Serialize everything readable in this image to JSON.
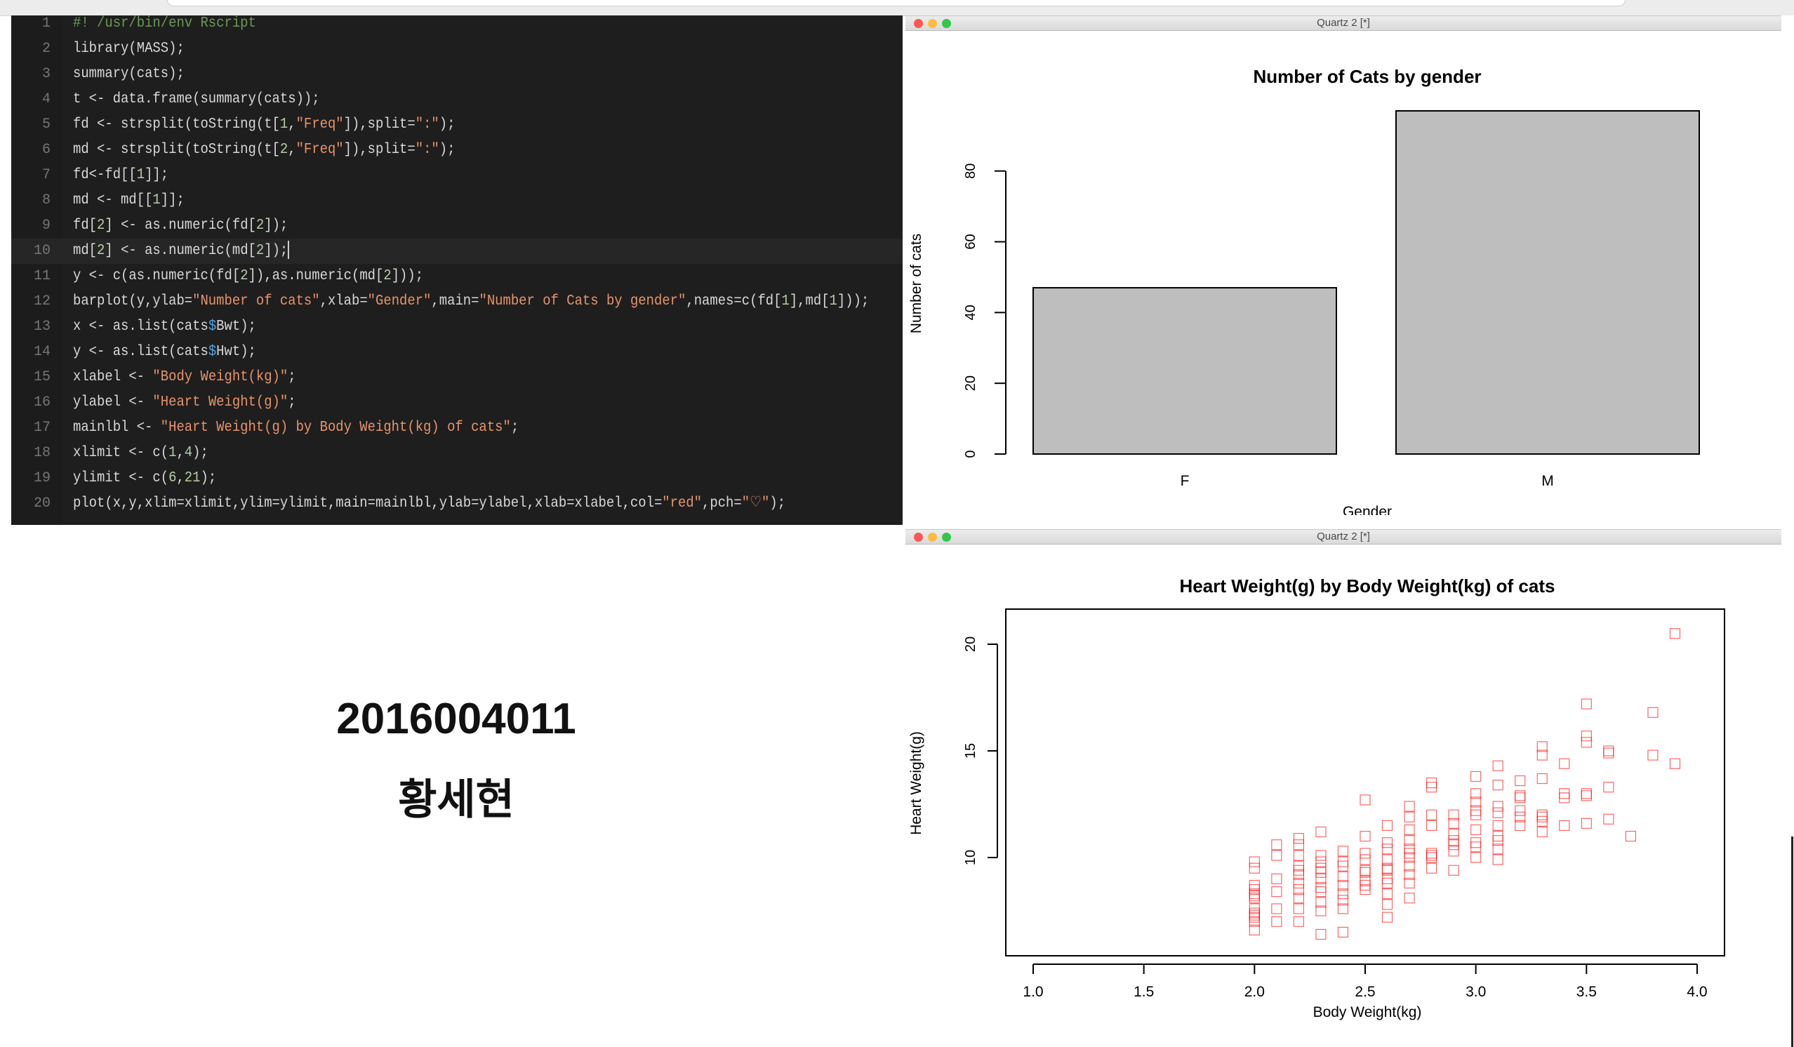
{
  "editor": {
    "lines": [
      {
        "n": "1",
        "tokens": [
          {
            "t": "#! /usr/bin/env Rscript",
            "c": "cm"
          }
        ]
      },
      {
        "n": "2",
        "tokens": [
          {
            "t": "library(MASS);"
          }
        ]
      },
      {
        "n": "3",
        "tokens": [
          {
            "t": "summary(cats);"
          }
        ]
      },
      {
        "n": "4",
        "tokens": [
          {
            "t": "t <- data.frame(summary(cats));"
          }
        ]
      },
      {
        "n": "5",
        "tokens": [
          {
            "t": "fd <- strsplit(toString(t["
          },
          {
            "t": "1",
            "c": "num"
          },
          {
            "t": ","
          },
          {
            "t": "\"Freq\"",
            "c": "str"
          },
          {
            "t": "]),split="
          },
          {
            "t": "\":\"",
            "c": "str"
          },
          {
            "t": ");"
          }
        ]
      },
      {
        "n": "6",
        "tokens": [
          {
            "t": "md <- strsplit(toString(t["
          },
          {
            "t": "2",
            "c": "num"
          },
          {
            "t": ","
          },
          {
            "t": "\"Freq\"",
            "c": "str"
          },
          {
            "t": "]),split="
          },
          {
            "t": "\":\"",
            "c": "str"
          },
          {
            "t": ");"
          }
        ]
      },
      {
        "n": "7",
        "tokens": [
          {
            "t": "fd<-fd[["
          },
          {
            "t": "1",
            "c": "num"
          },
          {
            "t": "]];"
          }
        ]
      },
      {
        "n": "8",
        "tokens": [
          {
            "t": "md <- md[["
          },
          {
            "t": "1",
            "c": "num"
          },
          {
            "t": "]];"
          }
        ]
      },
      {
        "n": "9",
        "tokens": [
          {
            "t": "fd["
          },
          {
            "t": "2",
            "c": "num"
          },
          {
            "t": "] <- as.numeric(fd["
          },
          {
            "t": "2",
            "c": "num"
          },
          {
            "t": "]);"
          }
        ]
      },
      {
        "n": "10",
        "tokens": [
          {
            "t": "md["
          },
          {
            "t": "2",
            "c": "num"
          },
          {
            "t": "] <- as.numeric(md["
          },
          {
            "t": "2",
            "c": "num"
          },
          {
            "t": "]);"
          }
        ],
        "current": true
      },
      {
        "n": "11",
        "tokens": [
          {
            "t": "y <- c(as.numeric(fd["
          },
          {
            "t": "2",
            "c": "num"
          },
          {
            "t": "]),as.numeric(md["
          },
          {
            "t": "2",
            "c": "num"
          },
          {
            "t": "]));"
          }
        ]
      },
      {
        "n": "12",
        "tokens": [
          {
            "t": "barplot(y,ylab="
          },
          {
            "t": "\"Number of cats\"",
            "c": "str"
          },
          {
            "t": ",xlab="
          },
          {
            "t": "\"Gender\"",
            "c": "str"
          },
          {
            "t": ",main="
          },
          {
            "t": "\"Number of Cats by gender\"",
            "c": "str"
          },
          {
            "t": ",names=c(fd["
          },
          {
            "t": "1",
            "c": "num"
          },
          {
            "t": "],md["
          },
          {
            "t": "1",
            "c": "num"
          },
          {
            "t": "]));"
          }
        ]
      },
      {
        "n": "13",
        "tokens": [
          {
            "t": "x <- as.list(cats"
          },
          {
            "t": "$",
            "c": "var"
          },
          {
            "t": "Bwt);"
          }
        ]
      },
      {
        "n": "14",
        "tokens": [
          {
            "t": "y <- as.list(cats"
          },
          {
            "t": "$",
            "c": "var"
          },
          {
            "t": "Hwt);"
          }
        ]
      },
      {
        "n": "15",
        "tokens": [
          {
            "t": "xlabel <- "
          },
          {
            "t": "\"Body Weight(kg)\"",
            "c": "str"
          },
          {
            "t": ";"
          }
        ]
      },
      {
        "n": "16",
        "tokens": [
          {
            "t": "ylabel <- "
          },
          {
            "t": "\"Heart Weight(g)\"",
            "c": "str"
          },
          {
            "t": ";"
          }
        ]
      },
      {
        "n": "17",
        "tokens": [
          {
            "t": "mainlbl <- "
          },
          {
            "t": "\"Heart Weight(g) by Body Weight(kg) of cats\"",
            "c": "str"
          },
          {
            "t": ";"
          }
        ]
      },
      {
        "n": "18",
        "tokens": [
          {
            "t": "xlimit <- c("
          },
          {
            "t": "1",
            "c": "num"
          },
          {
            "t": ","
          },
          {
            "t": "4",
            "c": "num"
          },
          {
            "t": ");"
          }
        ]
      },
      {
        "n": "19",
        "tokens": [
          {
            "t": "ylimit <- c("
          },
          {
            "t": "6",
            "c": "num"
          },
          {
            "t": ","
          },
          {
            "t": "21",
            "c": "num"
          },
          {
            "t": ");"
          }
        ]
      },
      {
        "n": "20",
        "tokens": [
          {
            "t": "plot(x,y,xlim=xlimit,ylim=ylimit,main=mainlbl,ylab=ylabel,xlab=xlabel,col="
          },
          {
            "t": "\"red\"",
            "c": "str"
          },
          {
            "t": ",pch="
          },
          {
            "t": "\"♡\"",
            "c": "str"
          },
          {
            "t": ");"
          }
        ]
      }
    ]
  },
  "student": {
    "id": "2016004011",
    "name": "황세현"
  },
  "windows": {
    "top_title": "Quartz 2 [*]",
    "bottom_title": "Quartz 2 [*]"
  },
  "chart_data": [
    {
      "type": "bar",
      "title": "Number of Cats by gender",
      "xlabel": "Gender",
      "ylabel": "Number of cats",
      "categories": [
        "F",
        "M"
      ],
      "values": [
        47,
        97
      ],
      "ylim": [
        0,
        97
      ],
      "yticks": [
        "0",
        "20",
        "40",
        "60",
        "80"
      ],
      "bar_color": "#bebebe",
      "grid": false
    },
    {
      "type": "scatter",
      "title": "Heart Weight(g) by Body Weight(kg) of cats",
      "xlabel": "Body Weight(kg)",
      "ylabel": "Heart Weight(g)",
      "xlim": [
        1,
        4
      ],
      "ylim": [
        6,
        21
      ],
      "xticks": [
        "1.0",
        "1.5",
        "2.0",
        "2.5",
        "3.0",
        "3.5",
        "4.0"
      ],
      "yticks": [
        "10",
        "15",
        "20"
      ],
      "marker": "square",
      "color": "#ff0000",
      "grid": false,
      "points": [
        [
          2.0,
          7.0
        ],
        [
          2.0,
          7.4
        ],
        [
          2.0,
          9.5
        ],
        [
          2.0,
          7.2
        ],
        [
          2.0,
          7.3
        ],
        [
          2.0,
          7.6
        ],
        [
          2.0,
          8.1
        ],
        [
          2.0,
          8.2
        ],
        [
          2.0,
          8.3
        ],
        [
          2.0,
          8.5
        ],
        [
          2.0,
          8.7
        ],
        [
          2.0,
          9.8
        ],
        [
          2.1,
          7.0
        ],
        [
          2.1,
          10.1
        ],
        [
          2.1,
          10.6
        ],
        [
          2.2,
          7.0
        ],
        [
          2.2,
          8.1
        ],
        [
          2.2,
          8.5
        ],
        [
          2.2,
          8.8
        ],
        [
          2.2,
          9.2
        ],
        [
          2.2,
          9.6
        ],
        [
          2.2,
          10.1
        ],
        [
          2.3,
          6.4
        ],
        [
          2.3,
          8.6
        ],
        [
          2.3,
          9.3
        ],
        [
          2.3,
          9.5
        ],
        [
          2.3,
          9.8
        ],
        [
          2.4,
          9.6
        ],
        [
          2.4,
          10.3
        ],
        [
          2.5,
          8.5
        ],
        [
          2.5,
          9.4
        ],
        [
          2.5,
          9.9
        ],
        [
          2.5,
          10.2
        ],
        [
          2.6,
          7.2
        ],
        [
          2.6,
          8.3
        ],
        [
          2.6,
          8.8
        ],
        [
          2.6,
          9.5
        ],
        [
          2.6,
          10.4
        ],
        [
          2.7,
          8.8
        ],
        [
          2.7,
          9.2
        ],
        [
          2.7,
          10.0
        ],
        [
          2.7,
          10.2
        ],
        [
          2.7,
          10.4
        ],
        [
          2.7,
          11.3
        ],
        [
          2.8,
          9.5
        ],
        [
          2.8,
          11.5
        ],
        [
          2.8,
          13.3
        ],
        [
          2.9,
          10.8
        ],
        [
          2.9,
          11.6
        ],
        [
          3.0,
          10.0
        ],
        [
          3.0,
          10.7
        ],
        [
          3.0,
          12.6
        ],
        [
          3.1,
          9.9
        ],
        [
          3.1,
          11.5
        ],
        [
          3.1,
          12.4
        ],
        [
          3.1,
          13.4
        ],
        [
          3.2,
          11.5
        ],
        [
          3.3,
          11.7
        ],
        [
          3.3,
          13.7
        ],
        [
          3.3,
          14.8
        ],
        [
          3.4,
          11.5
        ],
        [
          3.4,
          12.8
        ],
        [
          3.5,
          11.6
        ],
        [
          3.5,
          13.0
        ],
        [
          3.5,
          15.4
        ],
        [
          3.5,
          17.2
        ],
        [
          3.6,
          11.8
        ],
        [
          3.6,
          13.3
        ],
        [
          3.6,
          14.9
        ],
        [
          3.7,
          11.0
        ],
        [
          3.8,
          14.8
        ],
        [
          3.8,
          16.8
        ],
        [
          3.9,
          14.4
        ],
        [
          3.9,
          20.5
        ],
        [
          2.9,
          9.4
        ],
        [
          2.8,
          10.1
        ],
        [
          3.2,
          12.9
        ],
        [
          2.9,
          12.0
        ],
        [
          2.4,
          8.3
        ],
        [
          2.3,
          7.9
        ],
        [
          2.1,
          8.4
        ],
        [
          2.5,
          12.7
        ],
        [
          2.6,
          11.5
        ],
        [
          2.7,
          12.4
        ],
        [
          2.8,
          12.0
        ],
        [
          3.0,
          13.0
        ],
        [
          3.0,
          12.2
        ],
        [
          3.1,
          14.3
        ],
        [
          3.2,
          13.6
        ],
        [
          3.3,
          15.2
        ],
        [
          3.4,
          14.4
        ],
        [
          3.6,
          15.0
        ],
        [
          3.5,
          15.7
        ],
        [
          2.2,
          10.9
        ],
        [
          2.3,
          11.2
        ],
        [
          2.4,
          9.1
        ],
        [
          2.5,
          8.9
        ],
        [
          2.6,
          9.9
        ],
        [
          2.7,
          11.9
        ],
        [
          2.8,
          10.2
        ],
        [
          2.9,
          10.3
        ],
        [
          3.0,
          10.5
        ],
        [
          3.1,
          12.1
        ],
        [
          3.2,
          12.8
        ],
        [
          3.3,
          11.9
        ],
        [
          2.4,
          7.6
        ],
        [
          2.3,
          8.4
        ],
        [
          2.1,
          9.0
        ],
        [
          2.2,
          7.6
        ],
        [
          2.0,
          6.6
        ],
        [
          2.3,
          7.5
        ],
        [
          2.4,
          9.8
        ],
        [
          2.5,
          9.3
        ],
        [
          2.6,
          10.7
        ],
        [
          2.7,
          8.1
        ],
        [
          2.8,
          10.0
        ],
        [
          2.9,
          11.1
        ],
        [
          3.0,
          11.3
        ],
        [
          3.1,
          10.8
        ],
        [
          3.2,
          12.2
        ],
        [
          2.2,
          9.4
        ],
        [
          2.3,
          10.1
        ],
        [
          2.4,
          8.0
        ],
        [
          2.5,
          11.0
        ],
        [
          2.6,
          9.0
        ],
        [
          2.7,
          10.8
        ],
        [
          2.8,
          13.5
        ],
        [
          3.0,
          13.8
        ],
        [
          3.1,
          11.0
        ],
        [
          3.3,
          11.2
        ],
        [
          3.4,
          13.0
        ],
        [
          3.5,
          12.9
        ],
        [
          2.1,
          7.6
        ],
        [
          2.2,
          10.6
        ],
        [
          2.3,
          9.0
        ],
        [
          2.4,
          8.7
        ],
        [
          2.5,
          8.7
        ],
        [
          2.6,
          9.4
        ],
        [
          2.7,
          9.6
        ],
        [
          2.9,
          10.6
        ],
        [
          3.0,
          12.0
        ],
        [
          3.2,
          11.9
        ],
        [
          3.3,
          12.0
        ],
        [
          3.1,
          10.4
        ],
        [
          2.6,
          7.8
        ],
        [
          2.4,
          6.5
        ]
      ]
    }
  ]
}
